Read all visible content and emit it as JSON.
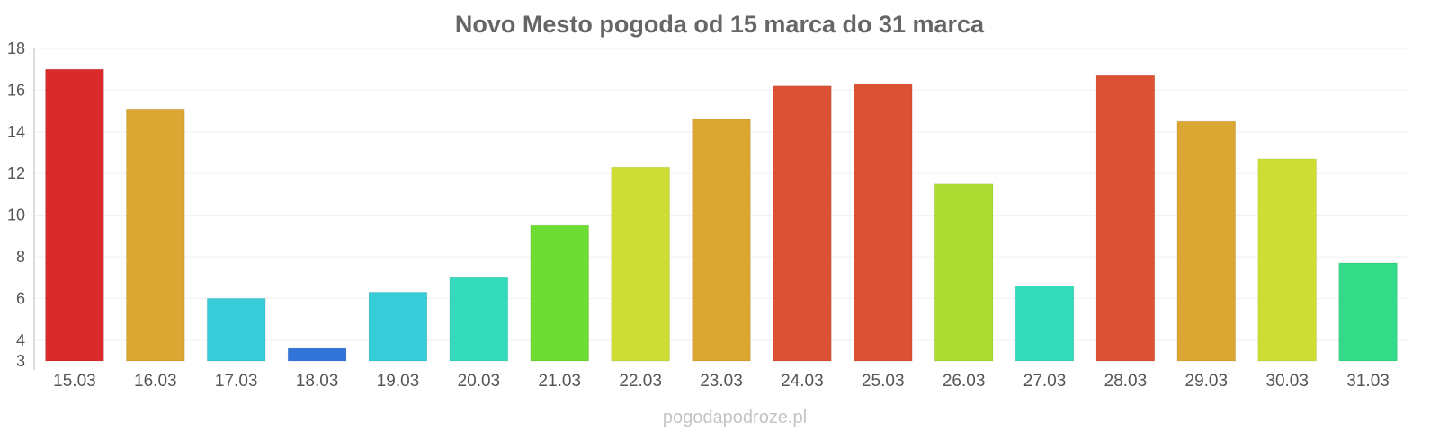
{
  "chart_data": {
    "type": "bar",
    "title": "Novo Mesto pogoda od 15 marca do 31 marca",
    "xlabel": "",
    "ylabel": "",
    "ylim": [
      3,
      18
    ],
    "yticks": [
      3,
      4,
      6,
      8,
      10,
      12,
      14,
      16,
      18
    ],
    "grid": true,
    "categories": [
      "15.03",
      "16.03",
      "17.03",
      "18.03",
      "19.03",
      "20.03",
      "21.03",
      "22.03",
      "23.03",
      "24.03",
      "25.03",
      "26.03",
      "27.03",
      "28.03",
      "29.03",
      "30.03",
      "31.03"
    ],
    "values": [
      17.0,
      15.1,
      6.0,
      3.6,
      6.3,
      7.0,
      9.5,
      12.3,
      14.6,
      16.2,
      16.3,
      11.5,
      6.6,
      16.7,
      14.5,
      12.7,
      7.7
    ],
    "colors": [
      "#d92b2b",
      "#dba631",
      "#36ccd8",
      "#3374d8",
      "#36ccd8",
      "#33dbbb",
      "#6ddd33",
      "#cedd33",
      "#dba631",
      "#dc5033",
      "#dc5033",
      "#addd33",
      "#33dbbb",
      "#dc5033",
      "#dba631",
      "#cedd33",
      "#33db88"
    ]
  },
  "footer": {
    "watermark": "pogodapodroze.pl"
  }
}
